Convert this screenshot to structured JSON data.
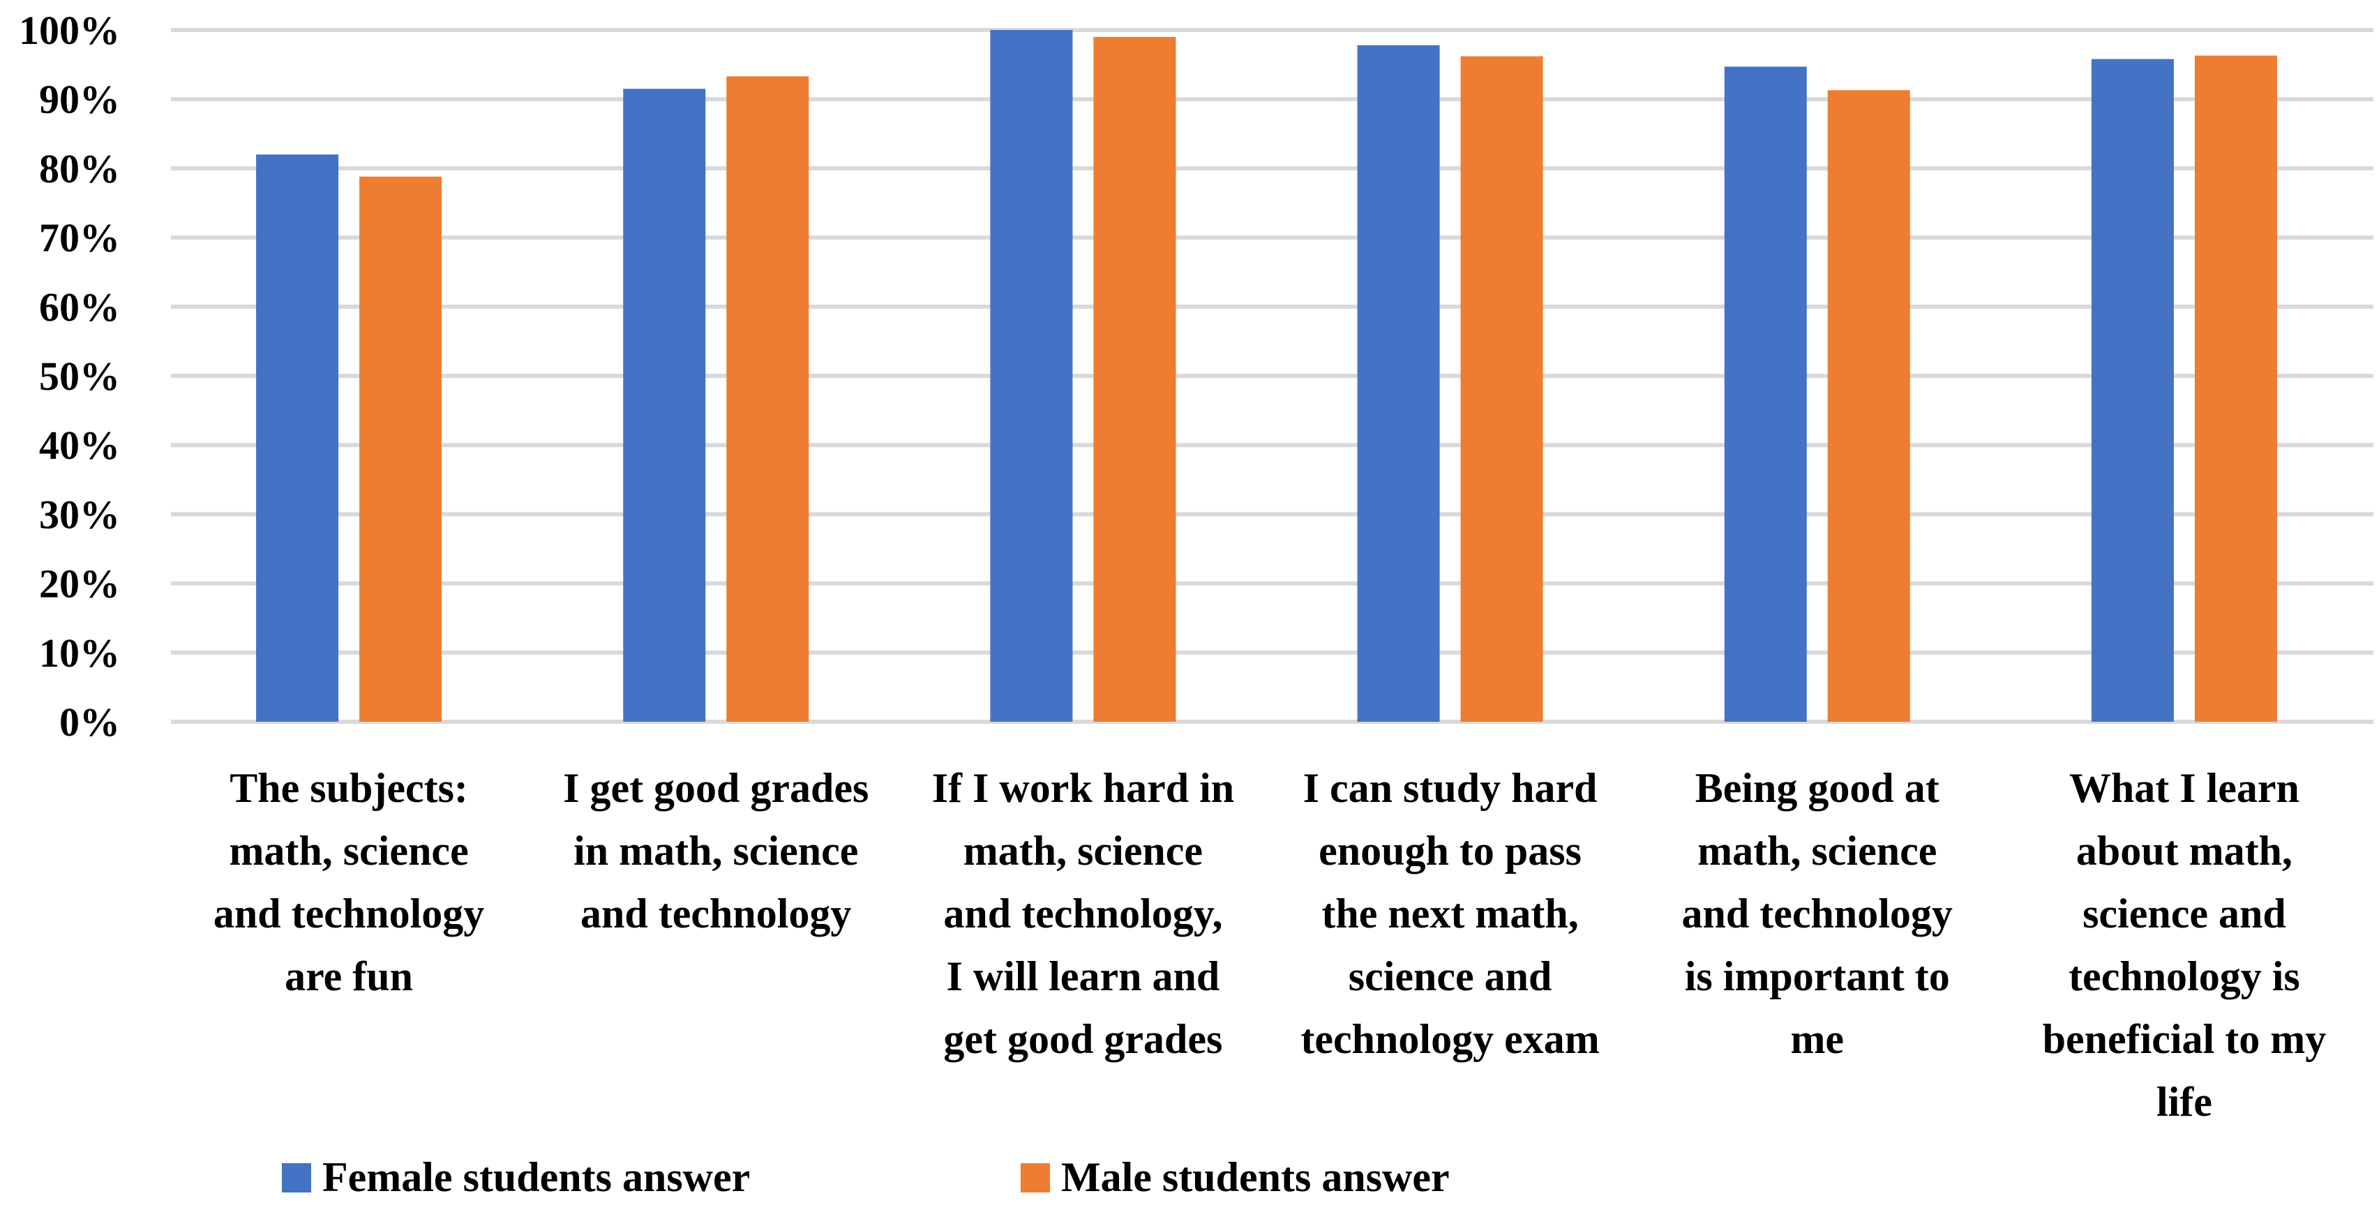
{
  "chart_data": {
    "type": "bar",
    "categories": [
      [
        "The subjects:",
        "math, science",
        "and technology",
        "are fun"
      ],
      [
        "I get good grades",
        "in math, science",
        "and technology"
      ],
      [
        "If I work hard in",
        "math, science",
        "and technology,",
        "I will learn and",
        "get good grades"
      ],
      [
        "I can study hard",
        "enough to pass",
        "the next math,",
        "science and",
        "technology exam"
      ],
      [
        "Being good at",
        "math, science",
        "and technology",
        "is important to",
        "me"
      ],
      [
        "What I learn",
        "about math,",
        "science and",
        "technology is",
        "beneficial to my",
        "life"
      ]
    ],
    "series": [
      {
        "name": "Female students answer",
        "color": "#4472C4",
        "values": [
          82,
          91.5,
          100,
          97.8,
          94.7,
          95.8
        ]
      },
      {
        "name": "Male students answer",
        "color": "#ED7D31",
        "values": [
          78.8,
          93.3,
          99,
          96.2,
          91.3,
          96.3
        ]
      }
    ],
    "ylim": [
      0,
      100
    ],
    "yticks": [
      "0%",
      "10%",
      "20%",
      "30%",
      "40%",
      "50%",
      "60%",
      "70%",
      "80%",
      "90%",
      "100%"
    ],
    "grid": true,
    "legend_position": "bottom-left"
  }
}
